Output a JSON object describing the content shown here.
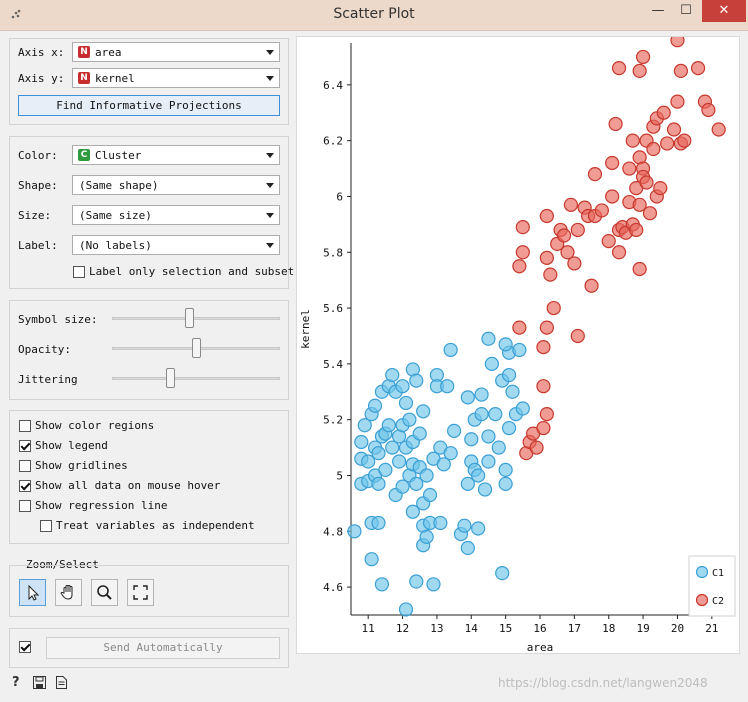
{
  "window": {
    "title": "Scatter Plot",
    "minimize": "—",
    "maximize": "☐",
    "close": "✕"
  },
  "axis": {
    "x_label": "Axis x:",
    "x_value": "area",
    "x_badge": "N",
    "y_label": "Axis y:",
    "y_value": "kernel",
    "y_badge": "N",
    "find_button": "Find Informative Projections"
  },
  "attributes": {
    "color_label": "Color:",
    "color_value": "Cluster",
    "color_badge": "C",
    "shape_label": "Shape:",
    "shape_value": "(Same shape)",
    "size_label": "Size:",
    "size_value": "(Same size)",
    "label_label": "Label:",
    "label_value": "(No labels)",
    "label_only_selection": "Label only selection and subset"
  },
  "sliders": {
    "symbol_size_label": "Symbol size:",
    "symbol_size": 0.46,
    "opacity_label": "Opacity:",
    "opacity": 0.5,
    "jittering_label": "Jittering",
    "jittering": 0.34
  },
  "options": [
    {
      "label": "Show color regions",
      "checked": false
    },
    {
      "label": "Show legend",
      "checked": true
    },
    {
      "label": "Show gridlines",
      "checked": false
    },
    {
      "label": "Show all data on mouse hover",
      "checked": true
    },
    {
      "label": "Show regression line",
      "checked": false
    },
    {
      "label": "Treat variables as independent",
      "checked": false
    }
  ],
  "zoom_select": {
    "title": "Zoom/Select",
    "tools": [
      "select-arrow-icon",
      "pan-hand-icon",
      "zoom-magnifier-icon",
      "reset-zoom-icon"
    ]
  },
  "send": {
    "label": "Send Automatically",
    "checked": true
  },
  "status_icons": [
    "help-icon",
    "save-icon",
    "report-icon"
  ],
  "watermark": "https://blog.csdn.net/langwen2048",
  "colors": {
    "C1": "#6fc4ea",
    "C2": "#e8655a",
    "C1_stroke": "#3a9fd4",
    "C2_stroke": "#c6372c"
  },
  "chart_data": {
    "type": "scatter",
    "xlabel": "area",
    "ylabel": "kernel",
    "xlim": [
      10.5,
      21.5
    ],
    "ylim": [
      4.5,
      6.55
    ],
    "xticks": [
      11,
      12,
      13,
      14,
      15,
      16,
      17,
      18,
      19,
      20,
      21
    ],
    "yticks": [
      4.6,
      4.8,
      5,
      5.2,
      5.4,
      5.6,
      5.8,
      6,
      6.2,
      6.4
    ],
    "grid": false,
    "legend": "bottom-right",
    "series": [
      {
        "name": "C1",
        "points": [
          [
            10.6,
            4.8
          ],
          [
            10.8,
            4.97
          ],
          [
            10.8,
            5.06
          ],
          [
            10.8,
            5.12
          ],
          [
            10.9,
            5.18
          ],
          [
            11.0,
            4.98
          ],
          [
            11.0,
            5.05
          ],
          [
            11.1,
            4.83
          ],
          [
            11.1,
            4.7
          ],
          [
            11.1,
            5.22
          ],
          [
            11.2,
            5.0
          ],
          [
            11.2,
            5.1
          ],
          [
            11.2,
            5.25
          ],
          [
            11.3,
            4.97
          ],
          [
            11.3,
            5.08
          ],
          [
            11.3,
            4.83
          ],
          [
            11.4,
            5.14
          ],
          [
            11.4,
            4.61
          ],
          [
            11.4,
            5.3
          ],
          [
            11.5,
            5.02
          ],
          [
            11.5,
            5.15
          ],
          [
            11.6,
            5.32
          ],
          [
            11.6,
            5.18
          ],
          [
            11.7,
            5.1
          ],
          [
            11.7,
            5.36
          ],
          [
            11.8,
            4.93
          ],
          [
            11.8,
            5.3
          ],
          [
            11.9,
            5.05
          ],
          [
            11.9,
            5.14
          ],
          [
            12.0,
            5.32
          ],
          [
            12.0,
            5.18
          ],
          [
            12.0,
            4.96
          ],
          [
            12.1,
            4.52
          ],
          [
            12.1,
            5.26
          ],
          [
            12.1,
            5.1
          ],
          [
            12.2,
            5.0
          ],
          [
            12.2,
            5.2
          ],
          [
            12.3,
            4.87
          ],
          [
            12.3,
            5.04
          ],
          [
            12.3,
            5.12
          ],
          [
            12.3,
            5.38
          ],
          [
            12.4,
            4.62
          ],
          [
            12.4,
            5.34
          ],
          [
            12.4,
            4.97
          ],
          [
            12.5,
            5.03
          ],
          [
            12.5,
            5.15
          ],
          [
            12.6,
            5.23
          ],
          [
            12.6,
            4.82
          ],
          [
            12.6,
            4.75
          ],
          [
            12.6,
            4.9
          ],
          [
            12.7,
            5.0
          ],
          [
            12.7,
            4.78
          ],
          [
            12.8,
            4.93
          ],
          [
            12.8,
            4.83
          ],
          [
            12.9,
            5.06
          ],
          [
            12.9,
            4.61
          ],
          [
            13.0,
            5.36
          ],
          [
            13.0,
            5.32
          ],
          [
            13.1,
            4.83
          ],
          [
            13.1,
            5.1
          ],
          [
            13.2,
            5.04
          ],
          [
            13.3,
            5.32
          ],
          [
            13.4,
            5.45
          ],
          [
            13.4,
            5.08
          ],
          [
            13.5,
            5.16
          ],
          [
            13.7,
            4.79
          ],
          [
            13.8,
            4.82
          ],
          [
            13.9,
            4.74
          ],
          [
            13.9,
            4.97
          ],
          [
            13.9,
            5.28
          ],
          [
            14.0,
            5.05
          ],
          [
            14.0,
            5.13
          ],
          [
            14.1,
            5.02
          ],
          [
            14.1,
            5.2
          ],
          [
            14.2,
            5.0
          ],
          [
            14.2,
            4.81
          ],
          [
            14.3,
            5.22
          ],
          [
            14.3,
            5.29
          ],
          [
            14.4,
            4.95
          ],
          [
            14.5,
            5.14
          ],
          [
            14.5,
            5.05
          ],
          [
            14.5,
            5.49
          ],
          [
            14.6,
            5.4
          ],
          [
            14.7,
            5.22
          ],
          [
            14.8,
            5.1
          ],
          [
            14.9,
            4.65
          ],
          [
            14.9,
            5.34
          ],
          [
            15.0,
            4.97
          ],
          [
            15.0,
            5.02
          ],
          [
            15.1,
            5.17
          ],
          [
            15.1,
            5.36
          ],
          [
            15.1,
            5.44
          ],
          [
            15.2,
            5.3
          ],
          [
            15.3,
            5.22
          ],
          [
            15.4,
            5.45
          ],
          [
            15.5,
            5.24
          ],
          [
            15.0,
            5.47
          ]
        ]
      },
      {
        "name": "C2",
        "points": [
          [
            15.6,
            5.08
          ],
          [
            15.7,
            5.12
          ],
          [
            15.8,
            5.15
          ],
          [
            15.9,
            5.1
          ],
          [
            16.1,
            5.17
          ],
          [
            16.1,
            5.32
          ],
          [
            16.1,
            5.46
          ],
          [
            16.2,
            5.22
          ],
          [
            16.2,
            5.53
          ],
          [
            15.4,
            5.53
          ],
          [
            15.4,
            5.75
          ],
          [
            15.5,
            5.89
          ],
          [
            15.5,
            5.8
          ],
          [
            16.2,
            5.78
          ],
          [
            16.3,
            5.72
          ],
          [
            16.4,
            5.6
          ],
          [
            16.2,
            5.93
          ],
          [
            16.5,
            5.83
          ],
          [
            16.6,
            5.88
          ],
          [
            16.7,
            5.86
          ],
          [
            16.8,
            5.8
          ],
          [
            17.0,
            5.76
          ],
          [
            16.9,
            5.97
          ],
          [
            17.1,
            5.88
          ],
          [
            17.1,
            5.5
          ],
          [
            17.3,
            5.96
          ],
          [
            17.4,
            5.93
          ],
          [
            17.5,
            5.68
          ],
          [
            17.6,
            6.08
          ],
          [
            17.6,
            5.93
          ],
          [
            17.8,
            5.95
          ],
          [
            18.0,
            5.84
          ],
          [
            18.1,
            6.0
          ],
          [
            18.1,
            6.12
          ],
          [
            18.2,
            6.26
          ],
          [
            18.3,
            5.88
          ],
          [
            18.3,
            6.46
          ],
          [
            18.3,
            5.8
          ],
          [
            18.4,
            5.89
          ],
          [
            18.5,
            5.87
          ],
          [
            18.6,
            6.1
          ],
          [
            18.6,
            5.98
          ],
          [
            18.7,
            6.2
          ],
          [
            18.7,
            5.9
          ],
          [
            18.8,
            6.03
          ],
          [
            18.8,
            5.88
          ],
          [
            18.9,
            6.14
          ],
          [
            18.9,
            5.97
          ],
          [
            18.9,
            5.74
          ],
          [
            18.9,
            6.45
          ],
          [
            19.0,
            6.1
          ],
          [
            19.0,
            6.5
          ],
          [
            19.0,
            6.07
          ],
          [
            19.1,
            6.2
          ],
          [
            19.1,
            6.05
          ],
          [
            19.2,
            5.94
          ],
          [
            19.3,
            6.25
          ],
          [
            19.3,
            6.17
          ],
          [
            19.4,
            6.0
          ],
          [
            19.4,
            6.28
          ],
          [
            19.5,
            6.03
          ],
          [
            19.6,
            6.3
          ],
          [
            19.7,
            6.19
          ],
          [
            19.9,
            6.24
          ],
          [
            20.0,
            6.56
          ],
          [
            20.0,
            6.34
          ],
          [
            20.1,
            6.19
          ],
          [
            20.1,
            6.45
          ],
          [
            20.2,
            6.2
          ],
          [
            20.6,
            6.46
          ],
          [
            20.8,
            6.34
          ],
          [
            20.9,
            6.31
          ],
          [
            21.2,
            6.24
          ]
        ]
      }
    ]
  }
}
